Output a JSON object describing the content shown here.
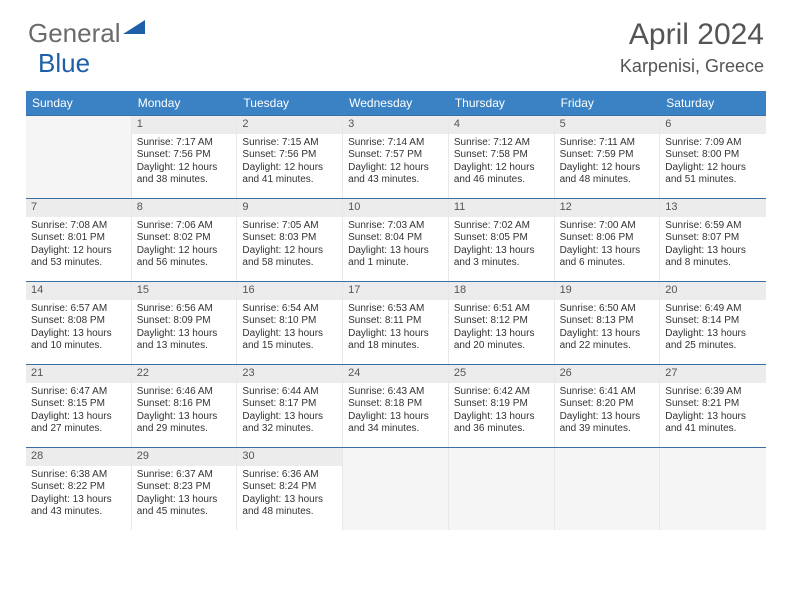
{
  "logo": {
    "text1": "General",
    "text2": "Blue",
    "tri_color": "#1f5fa8",
    "text_color": "#6b6b6b"
  },
  "title": "April 2024",
  "location": "Karpenisi, Greece",
  "colors": {
    "header_bg": "#3b82c4",
    "header_text": "#ffffff",
    "row_divider": "#3b6fa3",
    "cell_border": "#e8e8e8",
    "daynum_bg": "#ececec",
    "empty_bg": "#f5f5f5",
    "body_text": "#333333"
  },
  "day_headers": [
    "Sunday",
    "Monday",
    "Tuesday",
    "Wednesday",
    "Thursday",
    "Friday",
    "Saturday"
  ],
  "weeks": [
    [
      null,
      {
        "n": "1",
        "sr": "Sunrise: 7:17 AM",
        "ss": "Sunset: 7:56 PM",
        "d1": "Daylight: 12 hours",
        "d2": "and 38 minutes."
      },
      {
        "n": "2",
        "sr": "Sunrise: 7:15 AM",
        "ss": "Sunset: 7:56 PM",
        "d1": "Daylight: 12 hours",
        "d2": "and 41 minutes."
      },
      {
        "n": "3",
        "sr": "Sunrise: 7:14 AM",
        "ss": "Sunset: 7:57 PM",
        "d1": "Daylight: 12 hours",
        "d2": "and 43 minutes."
      },
      {
        "n": "4",
        "sr": "Sunrise: 7:12 AM",
        "ss": "Sunset: 7:58 PM",
        "d1": "Daylight: 12 hours",
        "d2": "and 46 minutes."
      },
      {
        "n": "5",
        "sr": "Sunrise: 7:11 AM",
        "ss": "Sunset: 7:59 PM",
        "d1": "Daylight: 12 hours",
        "d2": "and 48 minutes."
      },
      {
        "n": "6",
        "sr": "Sunrise: 7:09 AM",
        "ss": "Sunset: 8:00 PM",
        "d1": "Daylight: 12 hours",
        "d2": "and 51 minutes."
      }
    ],
    [
      {
        "n": "7",
        "sr": "Sunrise: 7:08 AM",
        "ss": "Sunset: 8:01 PM",
        "d1": "Daylight: 12 hours",
        "d2": "and 53 minutes."
      },
      {
        "n": "8",
        "sr": "Sunrise: 7:06 AM",
        "ss": "Sunset: 8:02 PM",
        "d1": "Daylight: 12 hours",
        "d2": "and 56 minutes."
      },
      {
        "n": "9",
        "sr": "Sunrise: 7:05 AM",
        "ss": "Sunset: 8:03 PM",
        "d1": "Daylight: 12 hours",
        "d2": "and 58 minutes."
      },
      {
        "n": "10",
        "sr": "Sunrise: 7:03 AM",
        "ss": "Sunset: 8:04 PM",
        "d1": "Daylight: 13 hours",
        "d2": "and 1 minute."
      },
      {
        "n": "11",
        "sr": "Sunrise: 7:02 AM",
        "ss": "Sunset: 8:05 PM",
        "d1": "Daylight: 13 hours",
        "d2": "and 3 minutes."
      },
      {
        "n": "12",
        "sr": "Sunrise: 7:00 AM",
        "ss": "Sunset: 8:06 PM",
        "d1": "Daylight: 13 hours",
        "d2": "and 6 minutes."
      },
      {
        "n": "13",
        "sr": "Sunrise: 6:59 AM",
        "ss": "Sunset: 8:07 PM",
        "d1": "Daylight: 13 hours",
        "d2": "and 8 minutes."
      }
    ],
    [
      {
        "n": "14",
        "sr": "Sunrise: 6:57 AM",
        "ss": "Sunset: 8:08 PM",
        "d1": "Daylight: 13 hours",
        "d2": "and 10 minutes."
      },
      {
        "n": "15",
        "sr": "Sunrise: 6:56 AM",
        "ss": "Sunset: 8:09 PM",
        "d1": "Daylight: 13 hours",
        "d2": "and 13 minutes."
      },
      {
        "n": "16",
        "sr": "Sunrise: 6:54 AM",
        "ss": "Sunset: 8:10 PM",
        "d1": "Daylight: 13 hours",
        "d2": "and 15 minutes."
      },
      {
        "n": "17",
        "sr": "Sunrise: 6:53 AM",
        "ss": "Sunset: 8:11 PM",
        "d1": "Daylight: 13 hours",
        "d2": "and 18 minutes."
      },
      {
        "n": "18",
        "sr": "Sunrise: 6:51 AM",
        "ss": "Sunset: 8:12 PM",
        "d1": "Daylight: 13 hours",
        "d2": "and 20 minutes."
      },
      {
        "n": "19",
        "sr": "Sunrise: 6:50 AM",
        "ss": "Sunset: 8:13 PM",
        "d1": "Daylight: 13 hours",
        "d2": "and 22 minutes."
      },
      {
        "n": "20",
        "sr": "Sunrise: 6:49 AM",
        "ss": "Sunset: 8:14 PM",
        "d1": "Daylight: 13 hours",
        "d2": "and 25 minutes."
      }
    ],
    [
      {
        "n": "21",
        "sr": "Sunrise: 6:47 AM",
        "ss": "Sunset: 8:15 PM",
        "d1": "Daylight: 13 hours",
        "d2": "and 27 minutes."
      },
      {
        "n": "22",
        "sr": "Sunrise: 6:46 AM",
        "ss": "Sunset: 8:16 PM",
        "d1": "Daylight: 13 hours",
        "d2": "and 29 minutes."
      },
      {
        "n": "23",
        "sr": "Sunrise: 6:44 AM",
        "ss": "Sunset: 8:17 PM",
        "d1": "Daylight: 13 hours",
        "d2": "and 32 minutes."
      },
      {
        "n": "24",
        "sr": "Sunrise: 6:43 AM",
        "ss": "Sunset: 8:18 PM",
        "d1": "Daylight: 13 hours",
        "d2": "and 34 minutes."
      },
      {
        "n": "25",
        "sr": "Sunrise: 6:42 AM",
        "ss": "Sunset: 8:19 PM",
        "d1": "Daylight: 13 hours",
        "d2": "and 36 minutes."
      },
      {
        "n": "26",
        "sr": "Sunrise: 6:41 AM",
        "ss": "Sunset: 8:20 PM",
        "d1": "Daylight: 13 hours",
        "d2": "and 39 minutes."
      },
      {
        "n": "27",
        "sr": "Sunrise: 6:39 AM",
        "ss": "Sunset: 8:21 PM",
        "d1": "Daylight: 13 hours",
        "d2": "and 41 minutes."
      }
    ],
    [
      {
        "n": "28",
        "sr": "Sunrise: 6:38 AM",
        "ss": "Sunset: 8:22 PM",
        "d1": "Daylight: 13 hours",
        "d2": "and 43 minutes."
      },
      {
        "n": "29",
        "sr": "Sunrise: 6:37 AM",
        "ss": "Sunset: 8:23 PM",
        "d1": "Daylight: 13 hours",
        "d2": "and 45 minutes."
      },
      {
        "n": "30",
        "sr": "Sunrise: 6:36 AM",
        "ss": "Sunset: 8:24 PM",
        "d1": "Daylight: 13 hours",
        "d2": "and 48 minutes."
      },
      null,
      null,
      null,
      null
    ]
  ]
}
